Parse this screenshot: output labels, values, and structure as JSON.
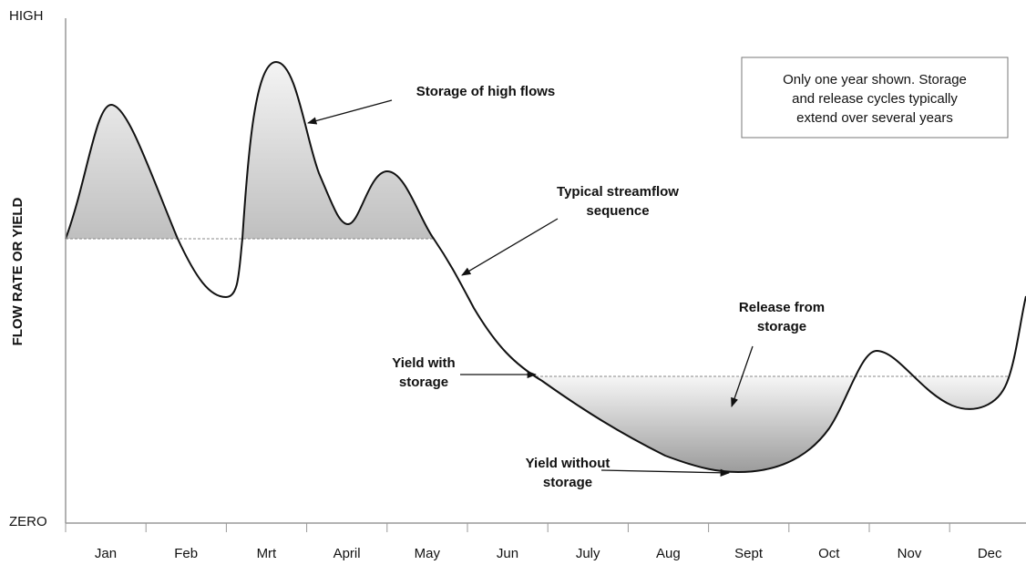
{
  "axis_label": "FLOW RATE OR YIELD",
  "y_top": "HIGH",
  "y_bottom": "ZERO",
  "months": [
    "Jan",
    "Feb",
    "Mrt",
    "April",
    "May",
    "Jun",
    "July",
    "Aug",
    "Sept",
    "Oct",
    "Nov",
    "Dec"
  ],
  "annotations": {
    "storage_high_flows": [
      "Storage of high flows"
    ],
    "typical_streamflow": [
      "Typical streamflow",
      "sequence"
    ],
    "release": [
      "Release from",
      "storage"
    ],
    "yield_with": [
      "Yield with",
      "storage"
    ],
    "yield_without": [
      "Yield without",
      "storage"
    ]
  },
  "note": [
    "Only one year shown. Storage",
    "and release cycles typically",
    "extend over several years"
  ]
}
